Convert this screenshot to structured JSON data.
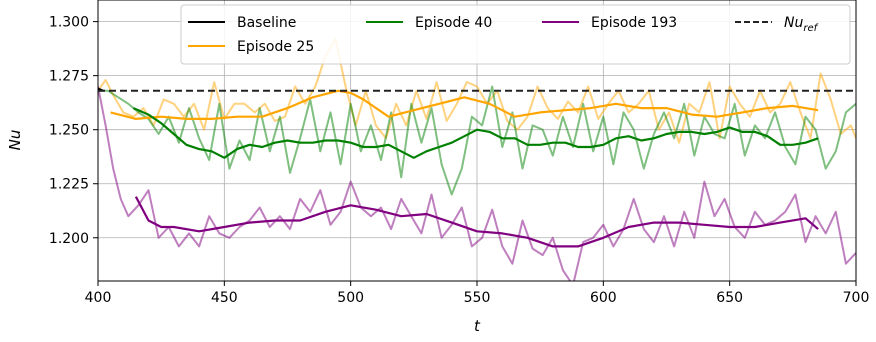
{
  "chart_data": {
    "type": "line",
    "title": "",
    "xlabel": "t",
    "ylabel": "Nu",
    "xlim": [
      400,
      700
    ],
    "ylim": [
      1.18,
      1.31
    ],
    "xticks": [
      400,
      450,
      500,
      550,
      600,
      650,
      700
    ],
    "xtick_labels": [
      "400",
      "450",
      "500",
      "550",
      "600",
      "650",
      "700"
    ],
    "yticks": [
      1.2,
      1.225,
      1.25,
      1.275,
      1.3
    ],
    "ytick_labels": [
      "1.200",
      "1.225",
      "1.250",
      "1.275",
      "1.300"
    ],
    "legend_position": "top",
    "reference": {
      "name": "Nu",
      "subscript": "ref",
      "value": 1.268,
      "color": "#222222",
      "style": "dashed"
    },
    "series": [
      {
        "name": "Baseline",
        "color": "#000000",
        "kind": "line",
        "x": [
          400,
          402
        ],
        "values": [
          1.269,
          1.268
        ]
      },
      {
        "name": "Episode 25",
        "color": "#ffa500",
        "kind": "raw",
        "x": [
          400,
          403,
          406,
          410,
          414,
          418,
          422,
          426,
          430,
          434,
          438,
          442,
          446,
          450,
          454,
          458,
          462,
          466,
          470,
          474,
          478,
          482,
          486,
          490,
          494,
          498,
          502,
          506,
          510,
          514,
          518,
          522,
          526,
          530,
          534,
          538,
          542,
          546,
          550,
          554,
          558,
          562,
          566,
          570,
          574,
          578,
          582,
          586,
          590,
          594,
          598,
          602,
          606,
          610,
          614,
          618,
          622,
          626,
          630,
          634,
          638,
          642,
          646,
          650,
          654,
          658,
          662,
          666,
          670,
          674,
          678,
          682,
          686,
          690,
          694,
          698,
          700
        ],
        "values": [
          1.268,
          1.273,
          1.266,
          1.258,
          1.256,
          1.26,
          1.252,
          1.264,
          1.262,
          1.256,
          1.262,
          1.25,
          1.272,
          1.255,
          1.262,
          1.262,
          1.258,
          1.262,
          1.254,
          1.256,
          1.27,
          1.262,
          1.27,
          1.284,
          1.292,
          1.27,
          1.252,
          1.268,
          1.252,
          1.246,
          1.262,
          1.252,
          1.268,
          1.255,
          1.272,
          1.254,
          1.262,
          1.272,
          1.27,
          1.262,
          1.268,
          1.254,
          1.25,
          1.256,
          1.27,
          1.26,
          1.255,
          1.263,
          1.258,
          1.27,
          1.255,
          1.262,
          1.268,
          1.258,
          1.262,
          1.268,
          1.25,
          1.258,
          1.244,
          1.262,
          1.258,
          1.272,
          1.246,
          1.27,
          1.262,
          1.256,
          1.268,
          1.258,
          1.262,
          1.272,
          1.258,
          1.246,
          1.276,
          1.264,
          1.248,
          1.252,
          1.246
        ]
      },
      {
        "name": "Episode 25",
        "color": "#ffa500",
        "kind": "smooth",
        "x": [
          405,
          415,
          425,
          435,
          445,
          455,
          465,
          475,
          485,
          495,
          500,
          505,
          515,
          525,
          535,
          545,
          555,
          565,
          575,
          585,
          595,
          605,
          615,
          625,
          635,
          645,
          655,
          665,
          675,
          685
        ],
        "values": [
          1.258,
          1.255,
          1.256,
          1.255,
          1.255,
          1.256,
          1.256,
          1.26,
          1.265,
          1.268,
          1.267,
          1.264,
          1.256,
          1.259,
          1.262,
          1.265,
          1.262,
          1.256,
          1.258,
          1.259,
          1.26,
          1.262,
          1.26,
          1.26,
          1.257,
          1.256,
          1.258,
          1.26,
          1.261,
          1.259
        ]
      },
      {
        "name": "Episode 40",
        "color": "#008000",
        "kind": "raw",
        "x": [
          400,
          404,
          408,
          412,
          416,
          420,
          424,
          428,
          432,
          436,
          440,
          444,
          448,
          452,
          456,
          460,
          464,
          468,
          472,
          476,
          480,
          484,
          488,
          492,
          496,
          500,
          504,
          508,
          512,
          516,
          520,
          524,
          528,
          532,
          536,
          540,
          544,
          548,
          552,
          556,
          560,
          564,
          568,
          572,
          576,
          580,
          584,
          588,
          592,
          596,
          600,
          604,
          608,
          612,
          616,
          620,
          624,
          628,
          632,
          636,
          640,
          644,
          648,
          652,
          656,
          660,
          664,
          668,
          672,
          676,
          680,
          684,
          688,
          692,
          696,
          700
        ],
        "values": [
          1.268,
          1.268,
          1.265,
          1.262,
          1.258,
          1.255,
          1.248,
          1.256,
          1.244,
          1.26,
          1.246,
          1.236,
          1.262,
          1.232,
          1.245,
          1.236,
          1.26,
          1.24,
          1.256,
          1.23,
          1.246,
          1.264,
          1.24,
          1.258,
          1.234,
          1.262,
          1.24,
          1.252,
          1.236,
          1.258,
          1.228,
          1.262,
          1.244,
          1.26,
          1.234,
          1.22,
          1.232,
          1.256,
          1.252,
          1.27,
          1.242,
          1.258,
          1.232,
          1.252,
          1.25,
          1.238,
          1.256,
          1.242,
          1.262,
          1.24,
          1.256,
          1.234,
          1.258,
          1.25,
          1.232,
          1.248,
          1.258,
          1.246,
          1.262,
          1.238,
          1.256,
          1.248,
          1.246,
          1.262,
          1.238,
          1.252,
          1.246,
          1.258,
          1.242,
          1.234,
          1.256,
          1.25,
          1.232,
          1.24,
          1.258,
          1.262
        ]
      },
      {
        "name": "Episode 40",
        "color": "#008000",
        "kind": "smooth",
        "x": [
          414,
          420,
          425,
          430,
          435,
          440,
          445,
          450,
          455,
          460,
          465,
          470,
          475,
          480,
          485,
          490,
          495,
          500,
          505,
          510,
          515,
          520,
          525,
          530,
          535,
          540,
          545,
          550,
          555,
          560,
          565,
          570,
          575,
          580,
          585,
          590,
          595,
          600,
          605,
          610,
          615,
          620,
          625,
          630,
          635,
          640,
          645,
          650,
          655,
          660,
          665,
          670,
          675,
          680,
          685
        ],
        "values": [
          1.26,
          1.257,
          1.253,
          1.248,
          1.243,
          1.241,
          1.24,
          1.237,
          1.241,
          1.243,
          1.242,
          1.244,
          1.245,
          1.244,
          1.244,
          1.245,
          1.245,
          1.244,
          1.242,
          1.242,
          1.243,
          1.24,
          1.237,
          1.24,
          1.242,
          1.244,
          1.247,
          1.25,
          1.249,
          1.246,
          1.246,
          1.243,
          1.243,
          1.244,
          1.244,
          1.242,
          1.242,
          1.243,
          1.246,
          1.247,
          1.245,
          1.246,
          1.248,
          1.249,
          1.249,
          1.248,
          1.249,
          1.251,
          1.249,
          1.249,
          1.247,
          1.243,
          1.243,
          1.244,
          1.246
        ]
      },
      {
        "name": "Episode 193",
        "color": "#800080",
        "kind": "raw",
        "x": [
          400,
          403,
          406,
          409,
          412,
          416,
          420,
          424,
          428,
          432,
          436,
          440,
          444,
          448,
          452,
          456,
          460,
          464,
          468,
          472,
          476,
          480,
          484,
          488,
          492,
          496,
          500,
          504,
          508,
          512,
          516,
          520,
          524,
          528,
          532,
          536,
          540,
          544,
          548,
          552,
          556,
          560,
          564,
          568,
          572,
          576,
          580,
          584,
          588,
          592,
          596,
          600,
          604,
          608,
          612,
          616,
          620,
          624,
          628,
          632,
          636,
          640,
          644,
          648,
          652,
          656,
          660,
          664,
          668,
          672,
          676,
          680,
          684,
          688,
          692,
          696,
          700
        ],
        "values": [
          1.27,
          1.252,
          1.232,
          1.218,
          1.21,
          1.215,
          1.222,
          1.2,
          1.205,
          1.196,
          1.202,
          1.196,
          1.21,
          1.202,
          1.2,
          1.205,
          1.208,
          1.214,
          1.205,
          1.21,
          1.204,
          1.218,
          1.212,
          1.222,
          1.206,
          1.212,
          1.226,
          1.214,
          1.21,
          1.214,
          1.204,
          1.218,
          1.21,
          1.202,
          1.22,
          1.2,
          1.206,
          1.214,
          1.196,
          1.2,
          1.213,
          1.196,
          1.188,
          1.208,
          1.195,
          1.192,
          1.2,
          1.185,
          1.178,
          1.198,
          1.2,
          1.206,
          1.196,
          1.204,
          1.218,
          1.204,
          1.198,
          1.21,
          1.196,
          1.212,
          1.2,
          1.226,
          1.21,
          1.218,
          1.205,
          1.2,
          1.212,
          1.206,
          1.208,
          1.212,
          1.22,
          1.198,
          1.21,
          1.202,
          1.212,
          1.188,
          1.193
        ]
      },
      {
        "name": "Episode 193",
        "color": "#800080",
        "kind": "smooth",
        "x": [
          415,
          420,
          425,
          430,
          440,
          450,
          460,
          470,
          480,
          490,
          500,
          510,
          520,
          530,
          540,
          550,
          560,
          570,
          580,
          590,
          600,
          610,
          620,
          630,
          640,
          650,
          660,
          670,
          680,
          685
        ],
        "values": [
          1.219,
          1.208,
          1.205,
          1.205,
          1.203,
          1.205,
          1.207,
          1.208,
          1.208,
          1.212,
          1.215,
          1.213,
          1.21,
          1.211,
          1.207,
          1.203,
          1.202,
          1.2,
          1.196,
          1.196,
          1.2,
          1.205,
          1.207,
          1.207,
          1.206,
          1.205,
          1.205,
          1.207,
          1.209,
          1.204
        ]
      }
    ],
    "legend": [
      {
        "label": "Baseline",
        "color": "#000000",
        "style": "solid"
      },
      {
        "label": "Episode 25",
        "color": "#ffa500",
        "style": "solid"
      },
      {
        "label": "Episode 40",
        "color": "#008000",
        "style": "solid"
      },
      {
        "label": "Episode 193",
        "color": "#800080",
        "style": "solid"
      },
      {
        "label": "Nu",
        "subscript": "ref",
        "color": "#222222",
        "style": "dashed"
      }
    ]
  }
}
